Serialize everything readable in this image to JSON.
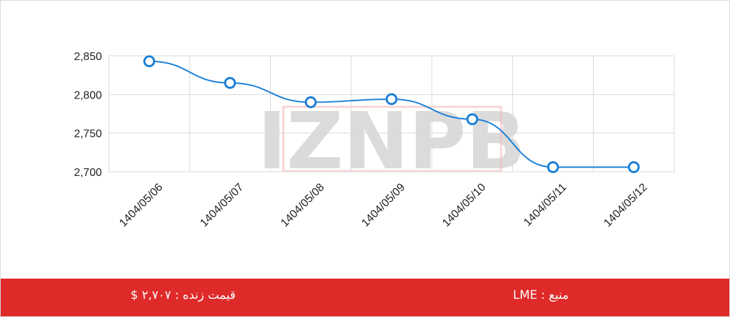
{
  "chart_data": {
    "type": "line",
    "title": "",
    "xlabel": "",
    "ylabel": "",
    "categories": [
      "1404/05/06",
      "1404/05/07",
      "1404/05/08",
      "1404/05/09",
      "1404/05/10",
      "1404/05/11",
      "1404/05/12"
    ],
    "series": [
      {
        "values": [
          2843,
          2815,
          2790,
          2794,
          2768,
          2706,
          2706
        ]
      }
    ],
    "ylim": [
      2700,
      2850
    ],
    "yticks": [
      2700,
      2750,
      2800,
      2850
    ],
    "ytick_labels": [
      "2,700",
      "2,750",
      "2,800",
      "2,850"
    ],
    "grid": true,
    "line_color": "#1a7fd6",
    "watermark": "IZNPB"
  },
  "footer": {
    "live_price": "قیمت زنده : ۲,۷۰۷ $",
    "source": "منبع : LME",
    "background": "#df2a2a"
  }
}
